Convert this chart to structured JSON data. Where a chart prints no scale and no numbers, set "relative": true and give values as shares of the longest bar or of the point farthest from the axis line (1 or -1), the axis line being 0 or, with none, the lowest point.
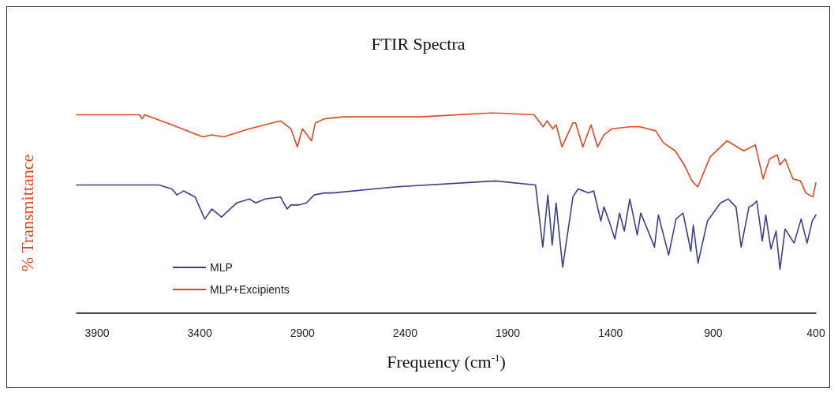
{
  "chart_data": {
    "type": "line",
    "title": "FTIR Spectra",
    "xlabel": "Frequency (cm$^{-1}$)",
    "ylabel": "% Transmittance",
    "relative": true,
    "xlim": [
      4000,
      400
    ],
    "xticks": [
      3900,
      3400,
      2900,
      2400,
      1900,
      1400,
      900,
      400
    ],
    "legend": "bottom left",
    "grid": false,
    "marker": "none",
    "line_style": "solid",
    "series": [
      {
        "name": "MLP",
        "color": "#3b3f8f",
        "x": [
          4000,
          3599,
          3536,
          3511,
          3479,
          3423,
          3376,
          3341,
          3294,
          3221,
          3158,
          3127,
          3082,
          3007,
          2975,
          2956,
          2918,
          2881,
          2843,
          2793,
          2755,
          2452,
          1961,
          1765,
          1730,
          1705,
          1684,
          1665,
          1633,
          1583,
          1558,
          1507,
          1482,
          1447,
          1432,
          1407,
          1379,
          1356,
          1333,
          1306,
          1270,
          1253,
          1217,
          1186,
          1167,
          1117,
          1081,
          1047,
          1009,
          997,
          974,
          928,
          865,
          827,
          789,
          764,
          726,
          707,
          688,
          661,
          644,
          619,
          594,
          575,
          550,
          506,
          472,
          443,
          418,
          400
        ],
        "values": [
          0.64,
          0.64,
          0.62,
          0.59,
          0.61,
          0.58,
          0.47,
          0.52,
          0.48,
          0.55,
          0.57,
          0.55,
          0.57,
          0.58,
          0.52,
          0.54,
          0.54,
          0.55,
          0.59,
          0.6,
          0.6,
          0.63,
          0.66,
          0.64,
          0.33,
          0.59,
          0.34,
          0.55,
          0.23,
          0.58,
          0.62,
          0.6,
          0.61,
          0.46,
          0.53,
          0.46,
          0.37,
          0.5,
          0.41,
          0.57,
          0.39,
          0.5,
          0.41,
          0.33,
          0.49,
          0.29,
          0.47,
          0.5,
          0.31,
          0.44,
          0.25,
          0.46,
          0.55,
          0.57,
          0.53,
          0.33,
          0.53,
          0.54,
          0.56,
          0.36,
          0.49,
          0.32,
          0.41,
          0.22,
          0.42,
          0.35,
          0.47,
          0.35,
          0.46,
          0.49
        ]
      },
      {
        "name": "MLP+Excipients",
        "color": "#e8461e",
        "x": [
          4000,
          3693,
          3681,
          3668,
          3536,
          3385,
          3341,
          3284,
          3158,
          3007,
          2956,
          2925,
          2900,
          2856,
          2837,
          2793,
          2704,
          2326,
          1974,
          1772,
          1728,
          1709,
          1681,
          1665,
          1636,
          1583,
          1570,
          1535,
          1495,
          1463,
          1432,
          1394,
          1306,
          1255,
          1180,
          1142,
          1085,
          1041,
          1003,
          975,
          915,
          833,
          751,
          695,
          657,
          626,
          588,
          575,
          550,
          512,
          475,
          449,
          415,
          400
        ],
        "values": [
          0.99,
          0.99,
          0.97,
          0.99,
          0.94,
          0.88,
          0.89,
          0.88,
          0.92,
          0.96,
          0.92,
          0.83,
          0.92,
          0.86,
          0.95,
          0.97,
          0.98,
          0.98,
          1.0,
          0.99,
          0.93,
          0.96,
          0.92,
          0.94,
          0.83,
          0.95,
          0.95,
          0.83,
          0.94,
          0.83,
          0.89,
          0.92,
          0.93,
          0.93,
          0.91,
          0.85,
          0.81,
          0.74,
          0.66,
          0.63,
          0.78,
          0.86,
          0.81,
          0.84,
          0.67,
          0.77,
          0.79,
          0.74,
          0.77,
          0.67,
          0.66,
          0.6,
          0.58,
          0.65
        ]
      }
    ]
  }
}
